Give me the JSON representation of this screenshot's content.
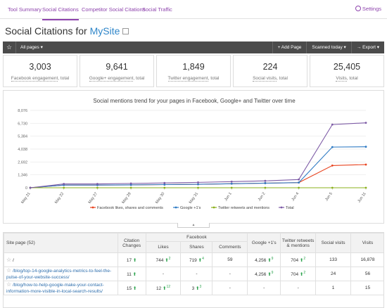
{
  "nav": {
    "tabs": [
      "Tool Summary",
      "Social Citations",
      "Competitor Social Citations",
      "Social Traffic"
    ],
    "settings": "Settings"
  },
  "title": {
    "prefix": "Social Citations for ",
    "site": "MySite"
  },
  "toolbar": {
    "pages_filter": "All pages",
    "add_page": "+ Add Page",
    "scanned": "Scanned today",
    "export": "Export"
  },
  "kpis": [
    {
      "value": "3,003",
      "label": "Facebook engagement",
      "suffix": ", total"
    },
    {
      "value": "9,641",
      "label": "Google+ engagement",
      "suffix": ", total"
    },
    {
      "value": "1,849",
      "label": "Twitter engagement",
      "suffix": ", total"
    },
    {
      "value": "224",
      "label": "Social visits",
      "suffix": ", total"
    },
    {
      "value": "25,405",
      "label": "Visits",
      "suffix": ", total"
    }
  ],
  "chart_data": {
    "type": "line",
    "title": "Social mentions trend for your pages in Facebook, Google+ and Twitter over time",
    "categories": [
      "May 21",
      "May 22",
      "May 27",
      "May 29",
      "May 30",
      "May 31",
      "Jun 1",
      "Jun 2",
      "Jun 4",
      "Jun 5",
      "Jun 11"
    ],
    "yticks": [
      "0",
      "1,346",
      "2,692",
      "4,038",
      "5,384",
      "6,730",
      "8,076"
    ],
    "ylim": [
      0,
      8076
    ],
    "legend_position": "bottom",
    "series": [
      {
        "name": "Facebook likes, shares and comments",
        "color": "#e8431f",
        "values": [
          0,
          280,
          280,
          300,
          330,
          360,
          420,
          480,
          540,
          2320,
          2420
        ]
      },
      {
        "name": "Google +1's",
        "color": "#2f7bc4",
        "values": [
          0,
          280,
          280,
          300,
          330,
          360,
          420,
          480,
          540,
          4250,
          4280
        ]
      },
      {
        "name": "Twitter retweets and mentions",
        "color": "#8bb01c",
        "values": [
          0,
          0,
          0,
          0,
          0,
          0,
          0,
          0,
          0,
          0,
          0
        ]
      },
      {
        "name": "Total",
        "color": "#7d5ba6",
        "values": [
          0,
          400,
          400,
          450,
          500,
          560,
          640,
          720,
          860,
          6600,
          6780
        ]
      }
    ]
  },
  "table": {
    "headers": {
      "site_page": "Site page (52)",
      "citation_changes": "Citation Changes",
      "facebook": "Facebook",
      "likes": "Likes",
      "shares": "Shares",
      "comments": "Comments",
      "google": "Google +1's",
      "twitter": "Twitter retweets & mentions",
      "social_visits": "Social visits",
      "visits": "Visits"
    },
    "rows": [
      {
        "page": "/",
        "changes": "17",
        "likes": "744",
        "likes_d": "2",
        "shares": "719",
        "shares_d": "4",
        "comments": "59",
        "google": "4,256",
        "google_d": "9",
        "twitter": "704",
        "twitter_d": "2",
        "social_visits": "133",
        "visits": "16,878"
      },
      {
        "page": "/blog/top-14-google-analytics-metrics-to-feel-the-pulse-of-your-website-success/",
        "changes": "11",
        "likes": "-",
        "likes_d": "",
        "shares": "-",
        "shares_d": "",
        "comments": "-",
        "google": "4,256",
        "google_d": "9",
        "twitter": "704",
        "twitter_d": "2",
        "social_visits": "24",
        "visits": "56"
      },
      {
        "page": "/blog/how-to-help-google-make-your-contact-information-more-visible-in-local-search-results/",
        "changes": "15",
        "likes": "12",
        "likes_d": "12",
        "shares": "3",
        "shares_d": "3",
        "comments": "-",
        "google": "-",
        "google_d": "",
        "twitter": "-",
        "twitter_d": "",
        "social_visits": "1",
        "visits": "15"
      }
    ]
  }
}
